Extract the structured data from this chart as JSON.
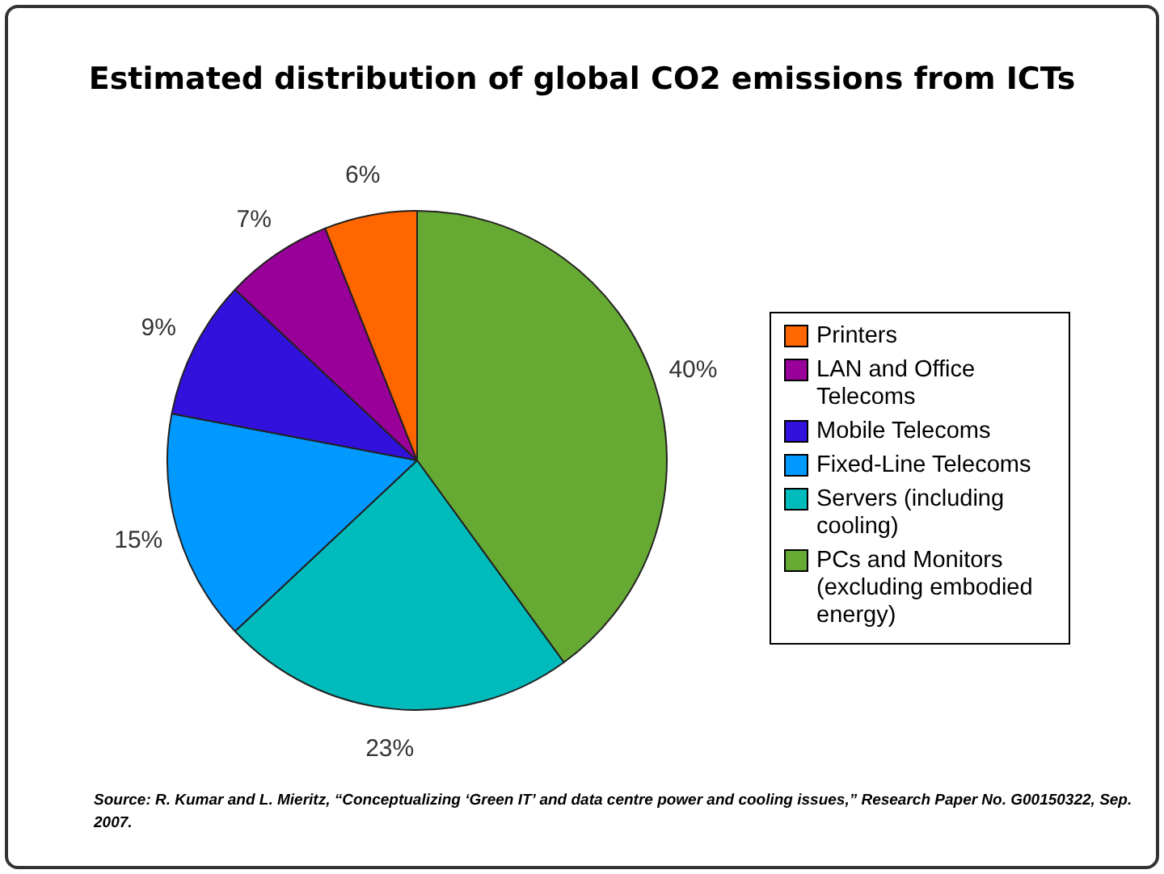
{
  "chart_data": {
    "type": "pie",
    "title": "Estimated distribution of global CO2 emissions from ICTs",
    "categories": [
      "Printers",
      "LAN and Office Telecoms",
      "Mobile Telecoms",
      "Fixed-Line Telecoms",
      "Servers (including cooling)",
      "PCs and Monitors (excluding embodied energy)"
    ],
    "values": [
      6,
      7,
      9,
      15,
      23,
      40
    ],
    "value_labels": [
      "6%",
      "7%",
      "9%",
      "15%",
      "23%",
      "40%"
    ],
    "colors": [
      "#ff6600",
      "#990099",
      "#3311dd",
      "#0099ff",
      "#00bbbb",
      "#66aa33"
    ],
    "legend": "right",
    "annotations": [
      "Source: R. Kumar and L. Mieritz, “Conceptualizing ‘Green IT’ and data centre power and cooling issues,” Research Paper No. G00150322, Sep. 2007."
    ]
  }
}
